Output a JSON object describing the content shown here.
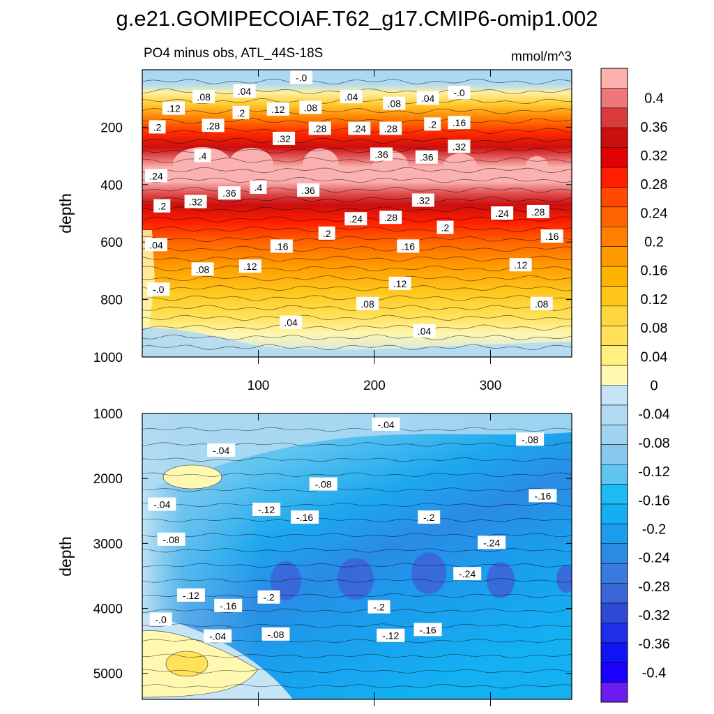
{
  "chart_data": {
    "type": "heatmap",
    "title": "g.e21.GOMIPECOIAF.T62_g17.CMIP6-omip1.002",
    "subtitle": "PO4 minus obs, ATL_44S-18S",
    "units": "mmol/m^3",
    "ylabel": "depth",
    "xlabel": "",
    "xlim": [
      0,
      370
    ],
    "x_ticks": [
      100,
      200,
      300
    ],
    "top_panel": {
      "ylim": [
        0,
        1000
      ],
      "y_ticks": [
        200,
        400,
        600,
        800,
        1000
      ],
      "contour_labels": [
        {
          "text": "-.0",
          "x": 137,
          "y": 28
        },
        {
          "text": ".08",
          "x": 53,
          "y": 95
        },
        {
          "text": ".04",
          "x": 88,
          "y": 75
        },
        {
          "text": ".12",
          "x": 27,
          "y": 135
        },
        {
          "text": ".2",
          "x": 85,
          "y": 150
        },
        {
          "text": ".12",
          "x": 117,
          "y": 138
        },
        {
          "text": ".08",
          "x": 145,
          "y": 132
        },
        {
          "text": ".04",
          "x": 180,
          "y": 95
        },
        {
          "text": ".08",
          "x": 217,
          "y": 118
        },
        {
          "text": ".04",
          "x": 246,
          "y": 100
        },
        {
          "text": "-.0",
          "x": 273,
          "y": 80
        },
        {
          "text": ".2",
          "x": 13,
          "y": 200
        },
        {
          "text": ".28",
          "x": 61,
          "y": 195
        },
        {
          "text": ".32",
          "x": 122,
          "y": 240
        },
        {
          "text": ".28",
          "x": 153,
          "y": 205
        },
        {
          "text": ".24",
          "x": 187,
          "y": 205
        },
        {
          "text": ".28",
          "x": 214,
          "y": 205
        },
        {
          "text": ".2",
          "x": 250,
          "y": 190
        },
        {
          "text": ".16",
          "x": 273,
          "y": 185
        },
        {
          "text": ".4",
          "x": 52,
          "y": 300
        },
        {
          "text": ".36",
          "x": 206,
          "y": 295
        },
        {
          "text": ".36",
          "x": 245,
          "y": 305
        },
        {
          "text": ".32",
          "x": 273,
          "y": 268
        },
        {
          "text": ".24",
          "x": 12,
          "y": 370
        },
        {
          "text": ".36",
          "x": 75,
          "y": 430
        },
        {
          "text": ".4",
          "x": 100,
          "y": 410
        },
        {
          "text": ".36",
          "x": 143,
          "y": 420
        },
        {
          "text": ".2",
          "x": 17,
          "y": 475
        },
        {
          "text": ".32",
          "x": 46,
          "y": 460
        },
        {
          "text": ".32",
          "x": 242,
          "y": 455
        },
        {
          "text": ".24",
          "x": 184,
          "y": 520
        },
        {
          "text": ".28",
          "x": 214,
          "y": 515
        },
        {
          "text": ".24",
          "x": 310,
          "y": 500
        },
        {
          "text": ".28",
          "x": 341,
          "y": 495
        },
        {
          "text": ".2",
          "x": 159,
          "y": 570
        },
        {
          "text": ".2",
          "x": 261,
          "y": 550
        },
        {
          "text": ".16",
          "x": 120,
          "y": 615
        },
        {
          "text": ".16",
          "x": 229,
          "y": 615
        },
        {
          "text": ".16",
          "x": 353,
          "y": 580
        },
        {
          "text": ".04",
          "x": 12,
          "y": 610
        },
        {
          "text": ".08",
          "x": 52,
          "y": 695
        },
        {
          "text": ".12",
          "x": 93,
          "y": 685
        },
        {
          "text": ".12",
          "x": 222,
          "y": 745
        },
        {
          "text": ".12",
          "x": 326,
          "y": 680
        },
        {
          "text": "-.0",
          "x": 14,
          "y": 765
        },
        {
          "text": ".08",
          "x": 194,
          "y": 815
        },
        {
          "text": ".08",
          "x": 344,
          "y": 815
        },
        {
          "text": ".04",
          "x": 128,
          "y": 880
        },
        {
          "text": ".04",
          "x": 243,
          "y": 910
        }
      ]
    },
    "bottom_panel": {
      "ylim": [
        1000,
        5400
      ],
      "y_ticks": [
        1000,
        2000,
        3000,
        4000,
        5000
      ],
      "contour_labels": [
        {
          "text": "-.04",
          "x": 210,
          "y": 1170
        },
        {
          "text": "-.08",
          "x": 334,
          "y": 1400
        },
        {
          "text": "-.04",
          "x": 68,
          "y": 1570
        },
        {
          "text": "-.08",
          "x": 156,
          "y": 2090
        },
        {
          "text": "-.16",
          "x": 345,
          "y": 2270
        },
        {
          "text": "-.04",
          "x": 17,
          "y": 2400
        },
        {
          "text": "-.12",
          "x": 107,
          "y": 2480
        },
        {
          "text": "-.16",
          "x": 140,
          "y": 2600
        },
        {
          "text": "-.2",
          "x": 247,
          "y": 2600
        },
        {
          "text": "-.08",
          "x": 25,
          "y": 2940
        },
        {
          "text": "-.24",
          "x": 301,
          "y": 2990
        },
        {
          "text": "-.24",
          "x": 280,
          "y": 3470
        },
        {
          "text": "-.12",
          "x": 42,
          "y": 3800
        },
        {
          "text": "-.2",
          "x": 109,
          "y": 3830
        },
        {
          "text": "-.16",
          "x": 74,
          "y": 3960
        },
        {
          "text": "-.2",
          "x": 204,
          "y": 3980
        },
        {
          "text": "-.0",
          "x": 16,
          "y": 4170
        },
        {
          "text": "-.04",
          "x": 65,
          "y": 4430
        },
        {
          "text": "-.08",
          "x": 115,
          "y": 4400
        },
        {
          "text": "-.12",
          "x": 214,
          "y": 4420
        },
        {
          "text": "-.16",
          "x": 246,
          "y": 4330
        }
      ]
    },
    "colorbar": {
      "labels": [
        "0.4",
        "0.36",
        "0.32",
        "0.28",
        "0.24",
        "0.2",
        "0.16",
        "0.12",
        "0.08",
        "0.04",
        "0",
        "-0.04",
        "-0.08",
        "-0.12",
        "-0.16",
        "-0.2",
        "-0.24",
        "-0.28",
        "-0.32",
        "-0.36",
        "-0.4"
      ],
      "colors": [
        "#fcb1b1",
        "#ee7878",
        "#da3b3b",
        "#cb0e0e",
        "#e30000",
        "#ff1e00",
        "#ff4800",
        "#ff6400",
        "#ff7f00",
        "#ff9a00",
        "#ffb100",
        "#ffc61a",
        "#ffd63d",
        "#ffe25a",
        "#fff080",
        "#fff8b0",
        "#c5e4f5",
        "#b1daf2",
        "#9fd3ef",
        "#8ac9ed",
        "#5fc4f0",
        "#1cbcf3",
        "#14aef2",
        "#1c9ced",
        "#2a8be5",
        "#3a7ade",
        "#3b66d8",
        "#2e48d7",
        "#1f2ee7",
        "#0f14f4",
        "#1c00ff",
        "#6b1df0"
      ]
    }
  }
}
